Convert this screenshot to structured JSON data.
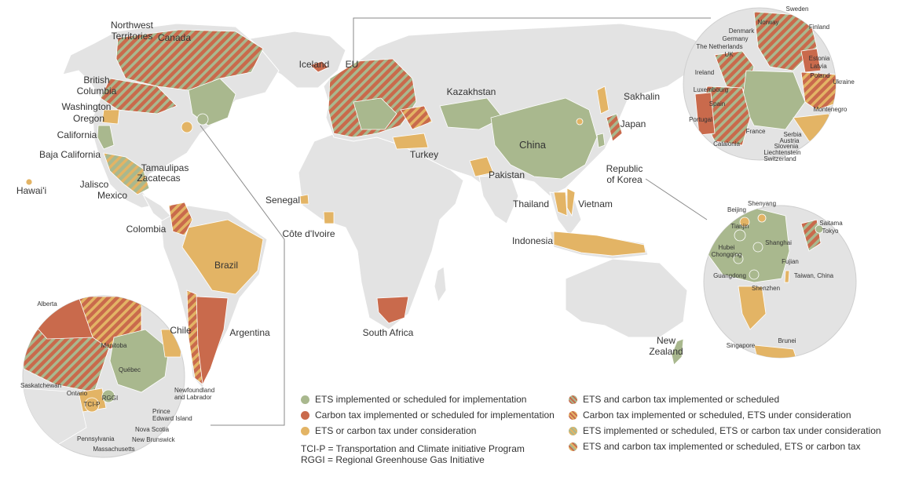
{
  "colors": {
    "ets": "#a9b88e",
    "tax": "#c96a4c",
    "consideration": "#e3b465",
    "land": "#e3e3e3",
    "ocean": "#ffffff"
  },
  "labels": {
    "northwest_territories": "Northwest\nTerritories",
    "canada": "Canada",
    "british_columbia": "British\nColumbia",
    "washington": "Washington",
    "oregon": "Oregon",
    "california": "California",
    "baja_california": "Baja California",
    "tamaulipas": "Tamaulipas",
    "zacatecas": "Zacatecas",
    "jalisco": "Jalisco",
    "mexico": "Mexico",
    "hawaii": "Hawai'i",
    "colombia": "Colombia",
    "brazil": "Brazil",
    "chile": "Chile",
    "argentina": "Argentina",
    "iceland": "Iceland",
    "eu": "EU",
    "kazakhstan": "Kazakhstan",
    "sakhalin": "Sakhalin",
    "japan": "Japan",
    "china": "China",
    "turkey": "Turkey",
    "pakistan": "Pakistan",
    "republic_of_korea": "Republic\nof Korea",
    "senegal": "Senegal",
    "cote_divoire": "Côte d'Ivoire",
    "thailand": "Thailand",
    "vietnam": "Vietnam",
    "indonesia": "Indonesia",
    "south_africa": "South Africa",
    "new_zealand": "New\nZealand",
    "alberta": "Alberta",
    "manitoba": "Manitoba",
    "saskatchewan": "Saskatchewan",
    "quebec": "Québec",
    "ontario": "Ontario",
    "rggi": "RGGI",
    "tci_p": "TCI-P",
    "newfoundland": "Newfoundland\nand Labrador",
    "prince_edward_island": "Prince\nEdward Island",
    "nova_scotia": "Nova Scotia",
    "new_brunswick": "New Brunswick",
    "pennsylvania": "Pennsylvania",
    "massachusetts": "Massachusetts",
    "sweden": "Sweden",
    "norway": "Norway",
    "finland": "Finland",
    "denmark": "Denmark",
    "germany": "Germany",
    "netherlands": "The Netherlands",
    "uk": "UK",
    "estonia": "Estonia",
    "latvia": "Latvia",
    "ireland": "Ireland",
    "poland": "Poland",
    "ukraine": "Ukraine",
    "luxembourg": "Luxembourg",
    "spain": "Spain",
    "montenegro": "Montenegro",
    "portugal": "Portugal",
    "france": "France",
    "serbia": "Serbia",
    "austria": "Austria",
    "slovenia": "Slovenia",
    "liechtenstein": "Liechtenstein",
    "catalonia": "Catalonia",
    "switzerland": "Switzerland",
    "beijing": "Beijing",
    "shenyang": "Shenyang",
    "saitama": "Saitama",
    "tokyo": "Tokyo",
    "tianjin": "Tianjin",
    "shanghai": "Shanghai",
    "hubei": "Hubei",
    "chongqing": "Chongqing",
    "fujian": "Fujian",
    "guangdong": "Guangdong",
    "taiwan": "Taiwan, China",
    "shenzhen": "Shenzhen",
    "singapore": "Singapore",
    "brunei": "Brunei"
  },
  "legend": {
    "col1": [
      {
        "type": "ets",
        "label": "ETS implemented or scheduled for implementation"
      },
      {
        "type": "tax",
        "label": "Carbon tax implemented or scheduled for implementation"
      },
      {
        "type": "consideration",
        "label": "ETS or carbon tax under consideration"
      }
    ],
    "col2": [
      {
        "type": "ets-tax",
        "label": "ETS and carbon tax implemented or scheduled"
      },
      {
        "type": "tax-etsc",
        "label": "Carbon tax implemented or scheduled, ETS under consideration"
      },
      {
        "type": "ets-c",
        "label": "ETS implemented or scheduled, ETS or carbon tax under consideration"
      },
      {
        "type": "ets-tax-c",
        "label": "ETS and carbon tax implemented or scheduled, ETS or carbon tax"
      }
    ]
  },
  "notes": {
    "tci": "TCI-P = Transportation and Climate initiative Program",
    "rggi": "RGGI = Regional Greenhouse Gas Initiative"
  }
}
